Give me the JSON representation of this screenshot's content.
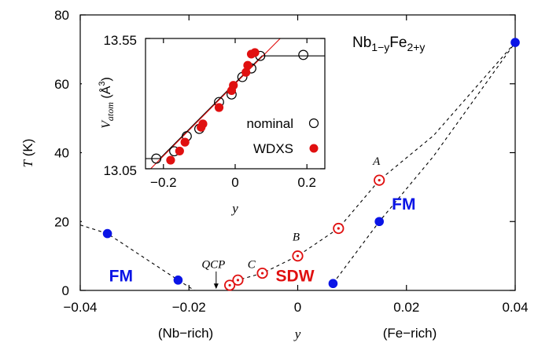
{
  "chart_data": [
    {
      "type": "scatter",
      "title": "Nb1-yFe2+y",
      "title_parts": {
        "base1": "Nb",
        "sub1": "1−y",
        "base2": "Fe",
        "sub2": "2+y"
      },
      "xlabel": "y",
      "ylabel": "T (K)",
      "ylabel_parts": {
        "italic": "T",
        "unit": "(K)"
      },
      "xlim": [
        -0.04,
        0.04
      ],
      "ylim": [
        0,
        80
      ],
      "x_ticks": [
        -0.04,
        -0.02,
        0,
        0.02,
        0.04
      ],
      "x_tick_labels": [
        "−0.04",
        "−0.02",
        "0",
        "0.02",
        "0.04"
      ],
      "y_ticks": [
        0,
        20,
        40,
        60,
        80
      ],
      "y_tick_labels": [
        "0",
        "20",
        "40",
        "60",
        "80"
      ],
      "x_side_labels": {
        "left": "(Nb−rich)",
        "right": "(Fe−rich)"
      },
      "colors": {
        "fm": "#0a14e6",
        "sdw": "#e01010",
        "line": "#000000"
      },
      "series": [
        {
          "name": "FM",
          "marker": "filled-circle",
          "color": "#0a14e6",
          "points": [
            [
              -0.035,
              16.5
            ],
            [
              -0.022,
              3.0
            ],
            [
              0.0065,
              2.0
            ],
            [
              0.015,
              20.0
            ],
            [
              0.04,
              72.0
            ]
          ]
        },
        {
          "name": "SDW",
          "marker": "open-circle-dot",
          "color": "#e01010",
          "points": [
            [
              -0.0125,
              1.5
            ],
            [
              -0.011,
              3.0
            ],
            [
              -0.0065,
              5.0
            ],
            [
              0.0,
              10.0
            ],
            [
              0.0075,
              18.0
            ],
            [
              0.015,
              32.0
            ]
          ]
        }
      ],
      "boundaries": [
        {
          "points": [
            [
              -0.04,
              19.0
            ],
            [
              -0.035,
              16.5
            ],
            [
              -0.022,
              3.0
            ],
            [
              -0.019,
              0.0
            ]
          ]
        },
        {
          "points": [
            [
              -0.013,
              0.0
            ],
            [
              -0.0125,
              1.5
            ],
            [
              -0.011,
              3.0
            ],
            [
              -0.0065,
              5.0
            ],
            [
              0.0,
              10.0
            ],
            [
              0.0075,
              18.0
            ],
            [
              0.015,
              32.0
            ],
            [
              0.025,
              45.0
            ],
            [
              0.04,
              72.0
            ]
          ]
        },
        {
          "points": [
            [
              0.0065,
              2.0
            ],
            [
              0.015,
              20.0
            ],
            [
              0.025,
              39.0
            ],
            [
              0.04,
              72.0
            ]
          ]
        }
      ],
      "annotations": [
        {
          "text": "A",
          "x": 0.0145,
          "y": 36.5,
          "style": "italic"
        },
        {
          "text": "B",
          "x": -0.0003,
          "y": 14.5,
          "style": "italic"
        },
        {
          "text": "C",
          "x": -0.0085,
          "y": 6.5,
          "style": "italic"
        },
        {
          "text": "QCP",
          "x": -0.0155,
          "y": 6.5,
          "style": "italic"
        },
        {
          "text": "FM",
          "x": -0.0325,
          "y": 2.6,
          "style": "bold",
          "color": "#0a14e6"
        },
        {
          "text": "SDW",
          "x": -0.0005,
          "y": 2.6,
          "style": "bold",
          "color": "#e01010"
        },
        {
          "text": "FM",
          "x": 0.0195,
          "y": 23.5,
          "style": "bold",
          "color": "#0a14e6"
        }
      ],
      "qcp_arrow": {
        "x": -0.015,
        "y_from": 5.5,
        "y_to": 0.4
      }
    },
    {
      "type": "scatter",
      "xlabel": "y",
      "ylabel": "Vatom (Å3)",
      "ylabel_parts": {
        "italic": "V",
        "sub": "atom",
        "unit_open": "(Å",
        "unit_sup": "3",
        "unit_close": ")"
      },
      "xlim": [
        -0.25,
        0.25
      ],
      "ylim": [
        13.05,
        13.55
      ],
      "x_ticks": [
        -0.2,
        0,
        0.2
      ],
      "x_tick_labels": [
        "−0.2",
        "0",
        "0.2"
      ],
      "y_ticks": [
        13.05,
        13.55
      ],
      "y_tick_labels": [
        "13.05",
        "13.55"
      ],
      "legend_position": "bottom-right",
      "series": [
        {
          "name": "nominal",
          "marker": "open-circle",
          "color": "#000000",
          "points": [
            [
              -0.22,
              13.089
            ],
            [
              -0.17,
              13.117
            ],
            [
              -0.135,
              13.175
            ],
            [
              -0.1,
              13.203
            ],
            [
              -0.045,
              13.306
            ],
            [
              -0.01,
              13.335
            ],
            [
              0.02,
              13.402
            ],
            [
              0.045,
              13.435
            ],
            [
              0.07,
              13.483
            ],
            [
              0.19,
              13.487
            ]
          ]
        },
        {
          "name": "WDXS",
          "marker": "filled-circle",
          "color": "#e01010",
          "points": [
            [
              -0.18,
              13.083
            ],
            [
              -0.155,
              13.118
            ],
            [
              -0.14,
              13.152
            ],
            [
              -0.095,
              13.209
            ],
            [
              -0.09,
              13.222
            ],
            [
              -0.045,
              13.285
            ],
            [
              -0.01,
              13.35
            ],
            [
              -0.005,
              13.37
            ],
            [
              0.03,
              13.42
            ],
            [
              0.035,
              13.447
            ],
            [
              0.045,
              13.49
            ],
            [
              0.055,
              13.496
            ]
          ]
        }
      ],
      "fit_lines": [
        {
          "color": "#000000",
          "points": [
            [
              -0.25,
              13.089
            ],
            [
              -0.21,
              13.089
            ],
            [
              0.075,
              13.483
            ],
            [
              0.25,
              13.483
            ]
          ]
        },
        {
          "color": "#e01010",
          "points": [
            [
              -0.25,
              13.03
            ],
            [
              0.14,
              13.57
            ]
          ]
        }
      ]
    }
  ]
}
